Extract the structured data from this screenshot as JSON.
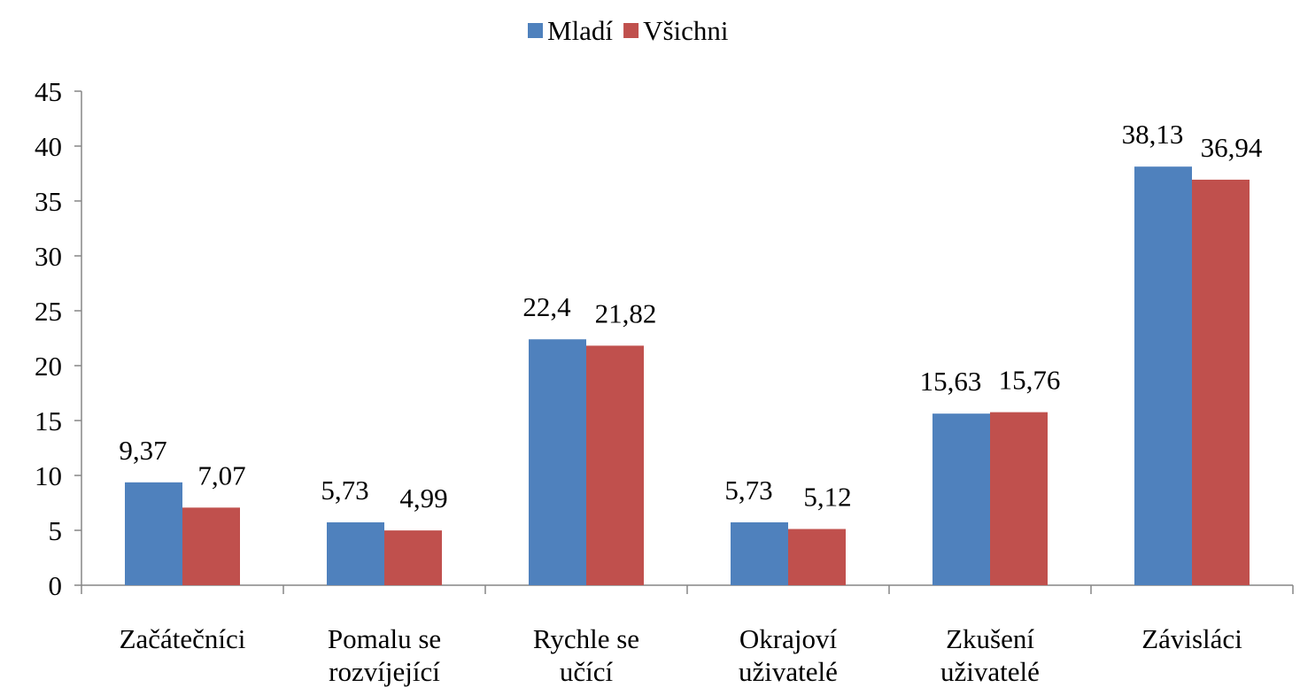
{
  "chart_data": {
    "type": "bar",
    "categories": [
      "Začátečníci",
      "Pomalu se\nrozvíjející",
      "Rychle se\nučící",
      "Okrajoví\nuživatelé",
      "Zkušení\nuživatelé",
      "Závisláci"
    ],
    "series": [
      {
        "name": "Mladí",
        "color": "#4f81bd",
        "values": [
          9.37,
          5.73,
          22.4,
          5.73,
          15.63,
          38.13
        ],
        "value_labels": [
          "9,37",
          "5,73",
          "22,4",
          "5,73",
          "15,63",
          "38,13"
        ]
      },
      {
        "name": "Všichni",
        "color": "#c0504d",
        "values": [
          7.07,
          4.99,
          21.82,
          5.12,
          15.76,
          36.94
        ],
        "value_labels": [
          "7,07",
          "4,99",
          "21,82",
          "5,12",
          "15,76",
          "36,94"
        ]
      }
    ],
    "ylim": [
      0,
      45
    ],
    "yticks": [
      0,
      5,
      10,
      15,
      20,
      25,
      30,
      35,
      40,
      45
    ],
    "legend": "top"
  }
}
